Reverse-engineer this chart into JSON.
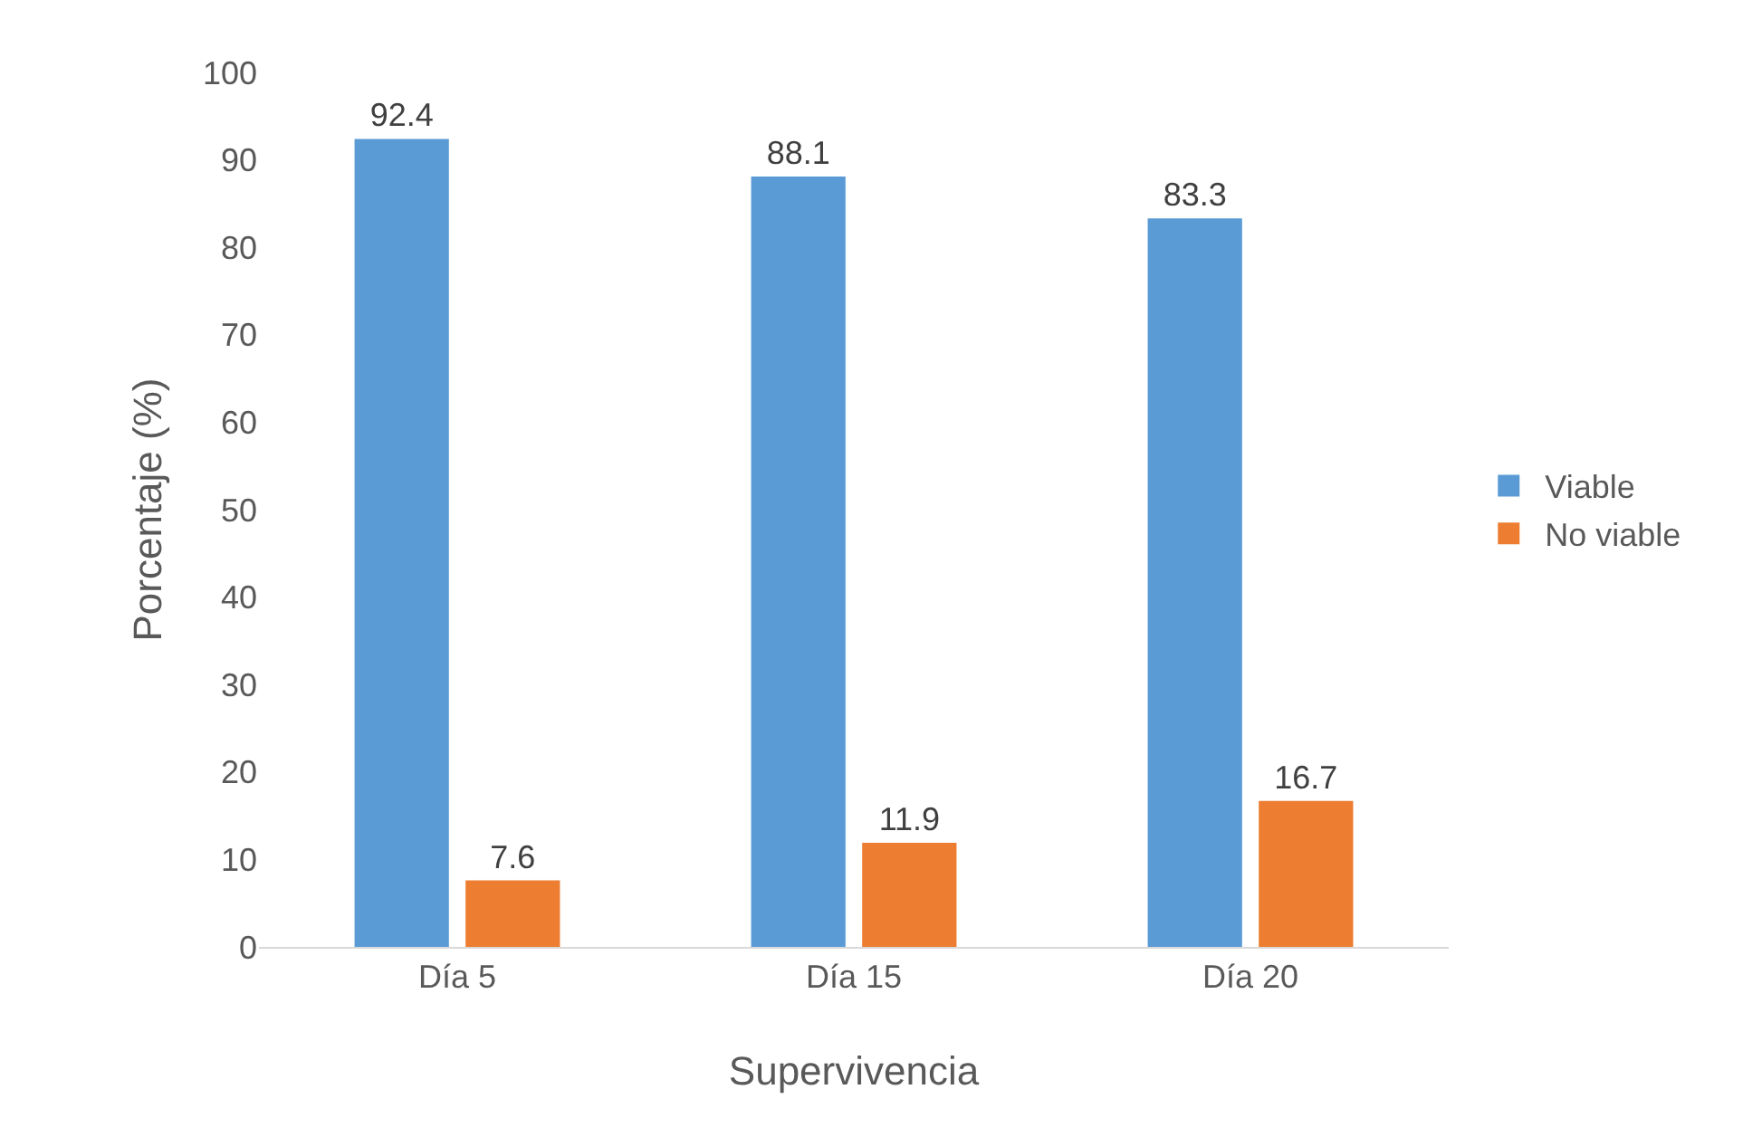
{
  "chart_data": {
    "type": "bar",
    "xlabel": "Supervivencia",
    "ylabel": "Porcentaje (%)",
    "categories": [
      "Día 5",
      "Día 15",
      "Día 20"
    ],
    "series": [
      {
        "name": "Viable",
        "color": "#5b9bd5",
        "values": [
          92.4,
          88.1,
          83.3
        ]
      },
      {
        "name": "No viable",
        "color": "#ed7d31",
        "values": [
          7.6,
          11.9,
          16.7
        ]
      }
    ],
    "ylim": [
      0,
      100
    ],
    "yticks": [
      0,
      10,
      20,
      30,
      40,
      50,
      60,
      70,
      80,
      90,
      100
    ],
    "data_labels": true,
    "grid": false,
    "legend": "right"
  }
}
